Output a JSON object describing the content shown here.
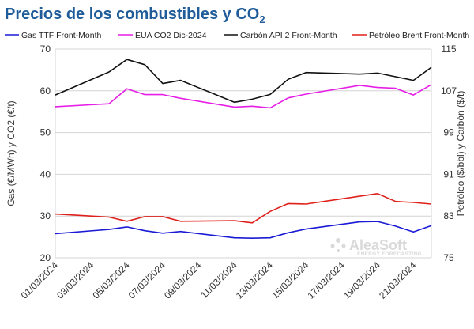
{
  "chart_data": {
    "type": "line",
    "title": "Precios de los combustibles y CO",
    "title_subscript": "2",
    "x": [
      "01/03/2024",
      "04/03/2024",
      "05/03/2024",
      "06/03/2024",
      "07/03/2024",
      "08/03/2024",
      "11/03/2024",
      "12/03/2024",
      "13/03/2024",
      "14/03/2024",
      "15/03/2024",
      "18/03/2024",
      "19/03/2024",
      "20/03/2024",
      "21/03/2024",
      "22/03/2024"
    ],
    "x_tick_labels": [
      "01/03/2024",
      "03/03/2024",
      "05/03/2024",
      "07/03/2024",
      "09/03/2024",
      "11/03/2024",
      "13/03/2024",
      "15/03/2024",
      "17/03/2024",
      "19/03/2024",
      "21/03/2024"
    ],
    "ylabel_left": "Gas (€/MWh) y CO2 (€/t)",
    "ylabel_right": "Petróleo ($/bbl) y Carbón ($/t)",
    "ylim_left": [
      20,
      70
    ],
    "yticks_left": [
      20,
      30,
      40,
      50,
      60,
      70
    ],
    "ylim_right": [
      75,
      115
    ],
    "yticks_right": [
      75,
      83,
      91,
      99,
      107,
      115
    ],
    "grid": "horizontal",
    "legend_position": "top",
    "series": [
      {
        "name": "Gas TTF Front-Month",
        "axis": "left",
        "color": "#1a1ad6",
        "values": [
          25.8,
          26.8,
          27.4,
          26.5,
          25.9,
          26.3,
          24.8,
          24.7,
          24.8,
          26.0,
          26.9,
          28.6,
          28.7,
          27.6,
          26.2,
          27.7
        ]
      },
      {
        "name": "EUA CO2 Dic-2024",
        "axis": "left",
        "color": "#e61ee6",
        "values": [
          56.2,
          56.9,
          60.5,
          59.1,
          59.1,
          58.2,
          56.1,
          56.3,
          55.9,
          58.3,
          59.2,
          61.3,
          60.8,
          60.6,
          59.0,
          61.5
        ]
      },
      {
        "name": "Carbón API 2 Front-Month",
        "axis": "right",
        "color": "#111111",
        "values": [
          106.2,
          110.6,
          113.0,
          112.0,
          108.4,
          109.0,
          104.8,
          105.4,
          106.3,
          109.2,
          110.5,
          110.2,
          110.4,
          109.7,
          109.0,
          111.5
        ]
      },
      {
        "name": "Petróleo Brent Front-Month",
        "axis": "right",
        "color": "#e0201b",
        "values": [
          83.4,
          82.8,
          82.0,
          82.9,
          82.9,
          82.0,
          82.1,
          81.7,
          83.9,
          85.4,
          85.3,
          86.8,
          87.3,
          85.8,
          85.6,
          85.3
        ]
      }
    ]
  },
  "watermark": {
    "brand": "AleaSoft",
    "tagline": "ENERGY FORECASTING"
  }
}
